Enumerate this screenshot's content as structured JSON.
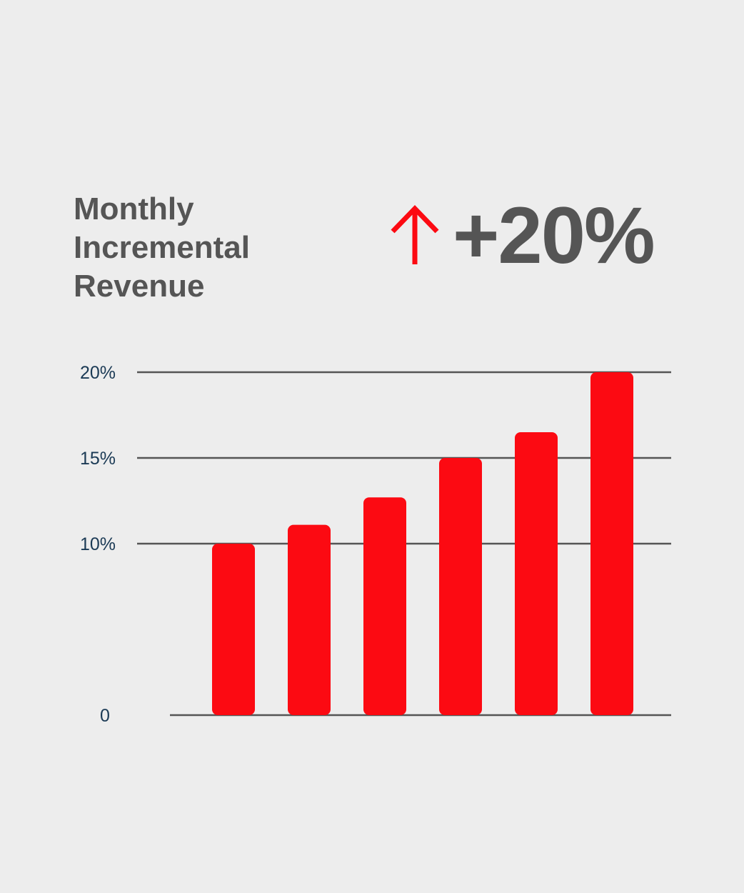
{
  "header": {
    "title_lines": [
      "Monthly",
      "Incremental",
      "Revenue"
    ],
    "growth_value": "+20%",
    "arrow_icon": "up-arrow-icon"
  },
  "colors": {
    "bar": "#fc0a12",
    "text": "#555555",
    "tick_text": "#1b3a55",
    "grid": "#555555",
    "background": "#ededed"
  },
  "chart_data": {
    "type": "bar",
    "categories": [
      "",
      "",
      "",
      "",
      "",
      ""
    ],
    "values": [
      10,
      11.1,
      12.7,
      15,
      16.5,
      20
    ],
    "title": "Monthly Incremental Revenue",
    "xlabel": "",
    "ylabel": "",
    "ylim": [
      0,
      20
    ],
    "yticks": [
      0,
      10,
      15,
      20
    ],
    "ytick_labels": [
      "0",
      "10%",
      "15%",
      "20%"
    ],
    "grid": true,
    "legend": "none"
  }
}
